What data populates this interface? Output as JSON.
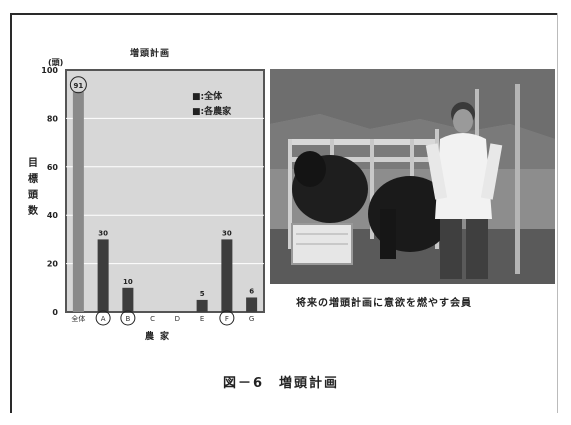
{
  "chart_data": {
    "type": "bar",
    "title": "増頭計画",
    "unit": "(頭)",
    "ylabel": "目標頭数",
    "xlabel": "農家",
    "ylim": [
      0,
      100
    ],
    "yticks": [
      "100",
      "80",
      "60",
      "40",
      "20",
      "0"
    ],
    "categories": [
      "全体",
      "A",
      "B",
      "C",
      "D",
      "E",
      "F",
      "G"
    ],
    "circled_categories": [
      "A",
      "B",
      "F"
    ],
    "series": [
      {
        "name": "全体",
        "values": [
          91,
          0,
          0,
          0,
          0,
          0,
          0,
          0
        ]
      },
      {
        "name": "各農家",
        "values": [
          0,
          30,
          10,
          0,
          0,
          5,
          30,
          6
        ]
      }
    ],
    "data_labels": [
      "91",
      "30",
      "10",
      "",
      "",
      "5",
      "30",
      "6"
    ],
    "legend": [
      "■:全体",
      "■:各農家"
    ],
    "legend_position": "top-right",
    "grid": true,
    "colors": {
      "plot_bg": "#d7d7d7",
      "border": "#555555",
      "bar_total": "#8a8a8a",
      "bar_farm": "#3d3d3d"
    }
  },
  "photo_caption": "将来の増頭計画に意欲を燃やす会員",
  "figure_caption": "図－6　増頭計画"
}
